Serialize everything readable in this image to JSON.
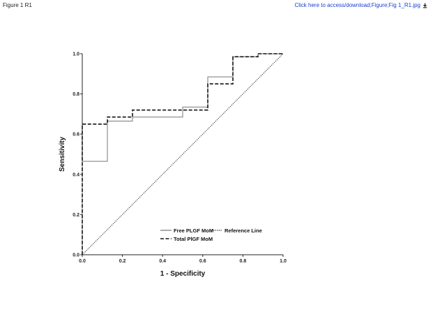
{
  "header": {
    "figure_label": "Figure 1 R1",
    "download_link": "Click here to access/download;Figure;Fig 1_R1.jpg",
    "download_icon": "download-icon"
  },
  "chart_data": {
    "type": "line",
    "title": "",
    "xlabel": "1 - Specificity",
    "ylabel": "Sensitivity",
    "xlim": [
      0,
      1
    ],
    "ylim": [
      0,
      1
    ],
    "xticks": [
      "0.0",
      "0.2",
      "0.4",
      "0.6",
      "0.8",
      "1.0"
    ],
    "yticks": [
      "0.0",
      "0.2",
      "0.4",
      "0.6",
      "0.8",
      "1.0"
    ],
    "grid": false,
    "legend_position": "bottom-right",
    "series": [
      {
        "name": "Free PLGF MoM",
        "style": "solid",
        "color": "#777777",
        "x": [
          0,
          0,
          0.125,
          0.125,
          0.25,
          0.25,
          0.5,
          0.5,
          0.625,
          0.625,
          0.75,
          0.75,
          0.875,
          0.875,
          1.0
        ],
        "y": [
          0,
          0.465,
          0.465,
          0.665,
          0.665,
          0.685,
          0.685,
          0.735,
          0.735,
          0.885,
          0.885,
          0.985,
          0.985,
          1.0,
          1.0
        ]
      },
      {
        "name": "Total PlGF MoM",
        "style": "dashed",
        "color": "#111111",
        "x": [
          0,
          0,
          0.125,
          0.125,
          0.25,
          0.25,
          0.625,
          0.625,
          0.75,
          0.75,
          0.875,
          0.875,
          1.0
        ],
        "y": [
          0,
          0.65,
          0.65,
          0.685,
          0.685,
          0.72,
          0.72,
          0.85,
          0.85,
          0.985,
          0.985,
          1.0,
          1.0
        ]
      },
      {
        "name": "Reference Line",
        "style": "dotted",
        "color": "#333333",
        "x": [
          0,
          1
        ],
        "y": [
          0,
          1
        ]
      }
    ],
    "legend": [
      {
        "label": "Free PLGF MoM",
        "style": "solid"
      },
      {
        "label": "Reference Line",
        "style": "dotted"
      },
      {
        "label": "Total PlGF MoM",
        "style": "dashed"
      }
    ]
  }
}
